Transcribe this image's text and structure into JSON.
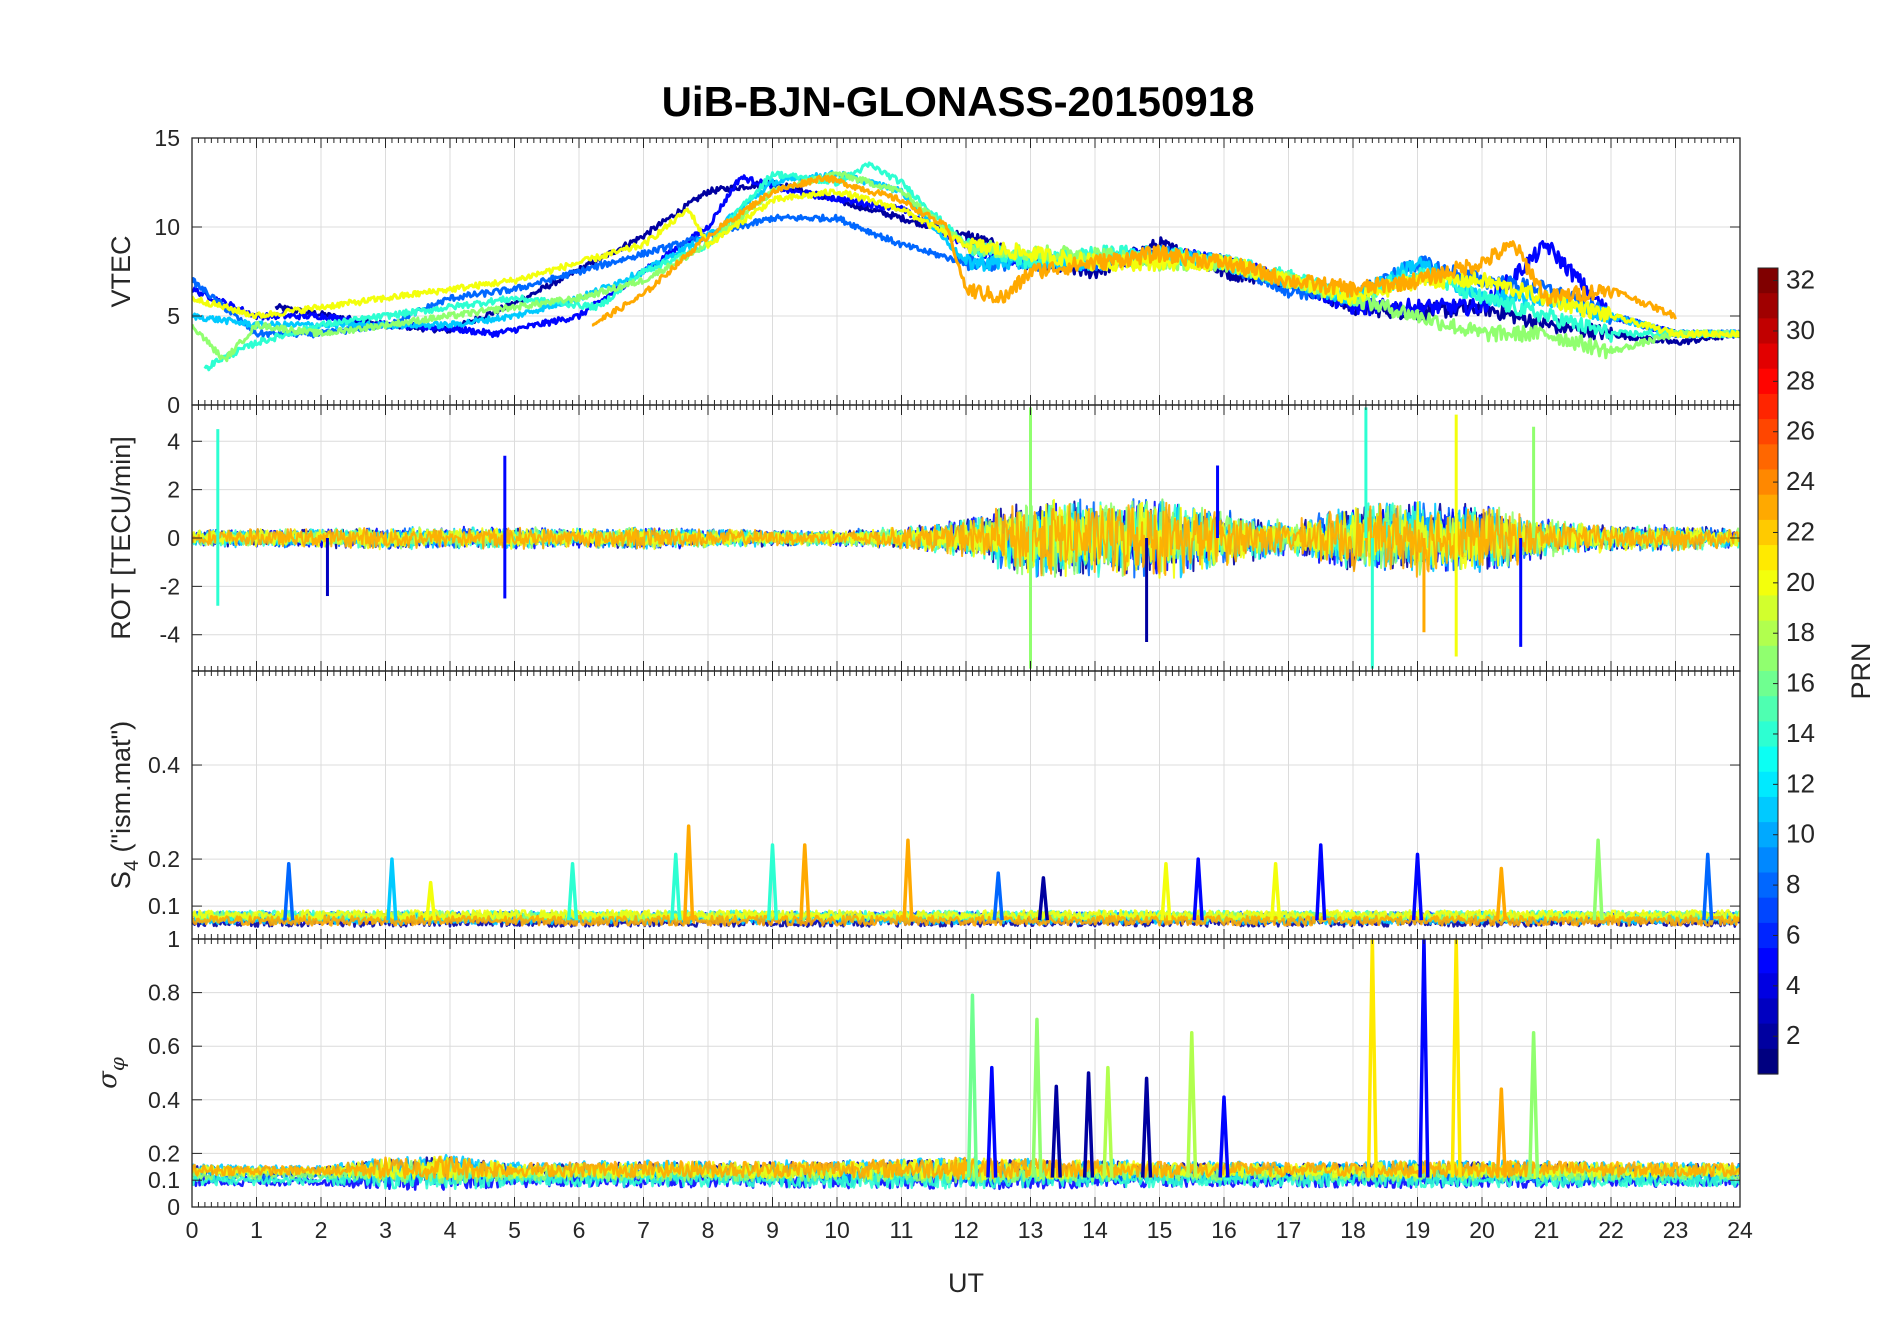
{
  "chart_data": {
    "type": "line",
    "title": "UiB-BJN-GLONASS-20150918",
    "xlabel": "UT",
    "xlim": [
      0,
      24
    ],
    "xticks": [
      "0",
      "1",
      "2",
      "3",
      "4",
      "5",
      "6",
      "7",
      "8",
      "9",
      "10",
      "11",
      "12",
      "13",
      "14",
      "15",
      "16",
      "17",
      "18",
      "19",
      "20",
      "21",
      "22",
      "23",
      "24"
    ],
    "grid": true,
    "colorbar": {
      "label": "PRN",
      "colormap": "jet",
      "range": [
        1,
        32
      ],
      "ticks": [
        "2",
        "4",
        "6",
        "8",
        "10",
        "12",
        "14",
        "16",
        "18",
        "20",
        "22",
        "24",
        "26",
        "28",
        "30",
        "32"
      ]
    },
    "panels": [
      {
        "ylabel": "VTEC",
        "ylim": [
          0,
          15
        ],
        "yticks": [
          "0",
          "5",
          "10",
          "15"
        ],
        "series_note": "approx",
        "series": [
          {
            "prn": 2,
            "x": [
              1.3,
              3,
              4,
              5,
              7,
              8,
              9,
              11,
              12,
              13,
              14,
              15,
              16,
              17,
              18,
              19,
              20,
              21,
              22,
              23,
              24
            ],
            "y": [
              5.5,
              4.5,
              4.2,
              5.7,
              9.5,
              12,
              12.5,
              10.5,
              9.5,
              8,
              7.5,
              9,
              7.5,
              7,
              5.5,
              5.2,
              5.5,
              4.5,
              4,
              3.5,
              4
            ]
          },
          {
            "prn": 5,
            "x": [
              0,
              1,
              2,
              3,
              4,
              4.7,
              6,
              7,
              8,
              8.5,
              9.3,
              11,
              12,
              12.5,
              13,
              14,
              15,
              16,
              17,
              18,
              19,
              20,
              21,
              22,
              23,
              24
            ],
            "y": [
              6.5,
              5,
              5,
              4.5,
              4.3,
              4,
              5,
              7.5,
              10,
              12.8,
              12,
              11,
              9,
              8.5,
              8,
              8,
              8.5,
              8,
              7,
              5.5,
              5.5,
              5.5,
              9,
              5,
              4,
              4
            ]
          },
          {
            "prn": 8,
            "x": [
              0,
              1,
              2,
              3,
              4,
              5,
              6,
              7,
              8,
              9,
              10,
              11,
              12,
              13,
              14,
              15,
              16,
              17,
              18,
              19,
              20,
              21,
              22,
              23,
              24
            ],
            "y": [
              7,
              4,
              4,
              4.5,
              6,
              6.5,
              7.5,
              8.5,
              9.5,
              10.5,
              10.5,
              9,
              8,
              8,
              8,
              8.5,
              8,
              6.5,
              6,
              8,
              7,
              6.5,
              5,
              4,
              4
            ]
          },
          {
            "prn": 11,
            "x": [
              0,
              1,
              2,
              3,
              4,
              5,
              6,
              7,
              8,
              9,
              10,
              11,
              12,
              13,
              14,
              15,
              16,
              17,
              18,
              19,
              20,
              21,
              22,
              23,
              24
            ],
            "y": [
              5,
              4.5,
              4.5,
              4.5,
              4.5,
              5,
              6,
              7.5,
              9.5,
              12.5,
              13,
              12,
              8,
              8,
              8,
              8.5,
              8,
              7,
              6,
              8,
              6,
              6,
              5,
              4,
              4
            ]
          },
          {
            "prn": 14,
            "x": [
              0.2,
              0.4,
              1,
              2,
              3,
              4,
              5,
              6.3,
              7,
              8,
              9,
              10,
              10.5,
              11,
              12,
              13,
              14,
              15,
              16,
              17,
              18,
              19,
              20,
              21,
              22,
              23,
              24
            ],
            "y": [
              2,
              2.5,
              3.5,
              4.5,
              5,
              5.5,
              6,
              5.5,
              7.5,
              9,
              13,
              12.5,
              13.5,
              12.5,
              9,
              8,
              8.5,
              8.5,
              8,
              7.2,
              6,
              7.5,
              6,
              5,
              4,
              4,
              4
            ]
          },
          {
            "prn": 17,
            "x": [
              0,
              0.5,
              1,
              2,
              3,
              4,
              5,
              6,
              7,
              8,
              9,
              10,
              11,
              12,
              13,
              14,
              15,
              16,
              17,
              18,
              19,
              20,
              21,
              22,
              23,
              24
            ],
            "y": [
              4.5,
              2.5,
              4.5,
              4,
              4.5,
              5,
              5.5,
              6,
              7,
              9,
              12,
              13,
              12,
              9,
              8.5,
              8.5,
              8,
              8,
              7,
              6,
              5,
              4,
              4,
              3,
              4,
              4
            ]
          },
          {
            "prn": 20,
            "x": [
              0,
              1,
              2,
              3,
              4,
              5,
              6,
              7,
              7.7,
              8,
              9,
              10,
              11,
              12,
              13,
              14,
              15,
              16,
              17,
              18,
              19,
              20,
              21,
              22,
              23,
              24
            ],
            "y": [
              6,
              5,
              5.5,
              6,
              6.5,
              7,
              8,
              9,
              11,
              9,
              11.5,
              12,
              11,
              9,
              8.5,
              8,
              8,
              8,
              7,
              6,
              7,
              7,
              6,
              5,
              4,
              4
            ]
          },
          {
            "prn": 23,
            "x": [
              6.2,
              7,
              8,
              9,
              9.8,
              11,
              11.7,
              12,
              12.6,
              13,
              14,
              15,
              16,
              17,
              18,
              19,
              20,
              20.5,
              21,
              22,
              23
            ],
            "y": [
              4.5,
              6.2,
              9.5,
              12,
              12.8,
              11.5,
              10,
              6.5,
              6,
              7.5,
              8,
              8.5,
              8,
              7,
              6.5,
              7,
              8,
              9,
              6,
              6.5,
              5
            ]
          }
        ]
      },
      {
        "ylabel": "ROT [TECU/min]",
        "ylim": [
          -5.5,
          5.5
        ],
        "yticks": [
          "-4",
          "-2",
          "0",
          "2",
          "4"
        ],
        "series_note": "approx",
        "spikes": [
          {
            "prn": 5,
            "x": 4.85,
            "y": 3.4
          },
          {
            "prn": 5,
            "x": 4.85,
            "y": -2.5
          },
          {
            "prn": 3,
            "x": 2.1,
            "y": -2.4
          },
          {
            "prn": 14,
            "x": 0.4,
            "y": 4.5
          },
          {
            "prn": 14,
            "x": 0.4,
            "y": -2.8
          },
          {
            "prn": 17,
            "x": 13.0,
            "y": 5.4
          },
          {
            "prn": 17,
            "x": 13.0,
            "y": -5.4
          },
          {
            "prn": 2,
            "x": 14.8,
            "y": -4.3
          },
          {
            "prn": 5,
            "x": 15.9,
            "y": 3.0
          },
          {
            "prn": 14,
            "x": 18.2,
            "y": 5.4
          },
          {
            "prn": 14,
            "x": 18.3,
            "y": -5.4
          },
          {
            "prn": 20,
            "x": 19.6,
            "y": 5.1
          },
          {
            "prn": 20,
            "x": 19.6,
            "y": -4.9
          },
          {
            "prn": 17,
            "x": 20.8,
            "y": 4.6
          },
          {
            "prn": 5,
            "x": 20.6,
            "y": -4.5
          },
          {
            "prn": 23,
            "x": 19.1,
            "y": -3.9
          }
        ],
        "activity": [
          [
            0,
            0.25
          ],
          [
            1,
            0.3
          ],
          [
            2,
            0.3
          ],
          [
            3,
            0.35
          ],
          [
            4,
            0.35
          ],
          [
            5,
            0.35
          ],
          [
            6,
            0.3
          ],
          [
            7,
            0.35
          ],
          [
            8,
            0.3
          ],
          [
            9,
            0.25
          ],
          [
            10,
            0.25
          ],
          [
            11,
            0.35
          ],
          [
            12,
            0.6
          ],
          [
            13,
            1.3
          ],
          [
            14,
            1.2
          ],
          [
            15,
            1.3
          ],
          [
            16,
            0.9
          ],
          [
            17,
            0.5
          ],
          [
            18,
            1.1
          ],
          [
            19,
            1.2
          ],
          [
            20,
            1.1
          ],
          [
            21,
            0.6
          ],
          [
            22,
            0.4
          ],
          [
            23,
            0.4
          ],
          [
            24,
            0.3
          ]
        ]
      },
      {
        "ylabel": "S4 (\"ism.mat\")",
        "ylabel_main": "S",
        "ylabel_sub": "4",
        "ylabel_rest": " (\"ism.mat\")",
        "ylim": [
          0.03,
          0.6
        ],
        "yticks": [
          "0.1",
          "0.2",
          "0.4"
        ],
        "series_note": "approx",
        "baseline": 0.07,
        "peaks": [
          {
            "prn": 8,
            "x": 1.5,
            "y": 0.19
          },
          {
            "prn": 11,
            "x": 3.1,
            "y": 0.2
          },
          {
            "prn": 20,
            "x": 3.7,
            "y": 0.15
          },
          {
            "prn": 14,
            "x": 5.9,
            "y": 0.19
          },
          {
            "prn": 14,
            "x": 7.5,
            "y": 0.21
          },
          {
            "prn": 23,
            "x": 7.7,
            "y": 0.27
          },
          {
            "prn": 14,
            "x": 9.0,
            "y": 0.23
          },
          {
            "prn": 23,
            "x": 9.5,
            "y": 0.23
          },
          {
            "prn": 23,
            "x": 11.1,
            "y": 0.24
          },
          {
            "prn": 8,
            "x": 12.5,
            "y": 0.17
          },
          {
            "prn": 2,
            "x": 13.2,
            "y": 0.16
          },
          {
            "prn": 20,
            "x": 15.1,
            "y": 0.19
          },
          {
            "prn": 5,
            "x": 15.6,
            "y": 0.2
          },
          {
            "prn": 20,
            "x": 16.8,
            "y": 0.19
          },
          {
            "prn": 5,
            "x": 17.5,
            "y": 0.23
          },
          {
            "prn": 5,
            "x": 19.0,
            "y": 0.21
          },
          {
            "prn": 23,
            "x": 20.3,
            "y": 0.18
          },
          {
            "prn": 17,
            "x": 21.8,
            "y": 0.24
          },
          {
            "prn": 8,
            "x": 23.5,
            "y": 0.21
          }
        ]
      },
      {
        "ylabel": "σφ",
        "ylabel_main": "σ",
        "ylabel_sub": "φ",
        "ylim": [
          0,
          1
        ],
        "yticks": [
          "0",
          "0.1",
          "0.2",
          "0.4",
          "0.6",
          "0.8",
          "1"
        ],
        "series_note": "approx",
        "baseline": 0.11,
        "peaks": [
          {
            "prn": 16,
            "x": 12.1,
            "y": 0.79
          },
          {
            "prn": 5,
            "x": 12.4,
            "y": 0.52
          },
          {
            "prn": 17,
            "x": 13.1,
            "y": 0.7
          },
          {
            "prn": 2,
            "x": 13.4,
            "y": 0.45
          },
          {
            "prn": 2,
            "x": 13.9,
            "y": 0.5
          },
          {
            "prn": 18,
            "x": 14.2,
            "y": 0.52
          },
          {
            "prn": 2,
            "x": 14.8,
            "y": 0.48
          },
          {
            "prn": 18,
            "x": 15.5,
            "y": 0.65
          },
          {
            "prn": 5,
            "x": 16.0,
            "y": 0.41
          },
          {
            "prn": 21,
            "x": 18.3,
            "y": 1.0
          },
          {
            "prn": 5,
            "x": 19.1,
            "y": 1.0
          },
          {
            "prn": 21,
            "x": 19.6,
            "y": 1.0
          },
          {
            "prn": 23,
            "x": 20.3,
            "y": 0.44
          },
          {
            "prn": 17,
            "x": 20.8,
            "y": 0.65
          }
        ],
        "activity": [
          [
            0,
            0.04
          ],
          [
            2,
            0.03
          ],
          [
            3,
            0.08
          ],
          [
            4,
            0.09
          ],
          [
            5,
            0.05
          ],
          [
            7,
            0.06
          ],
          [
            9,
            0.06
          ],
          [
            11,
            0.07
          ],
          [
            12,
            0.08
          ],
          [
            13,
            0.07
          ],
          [
            15,
            0.06
          ],
          [
            17,
            0.05
          ],
          [
            19,
            0.06
          ],
          [
            21,
            0.06
          ],
          [
            23,
            0.05
          ],
          [
            24,
            0.05
          ]
        ]
      }
    ]
  }
}
